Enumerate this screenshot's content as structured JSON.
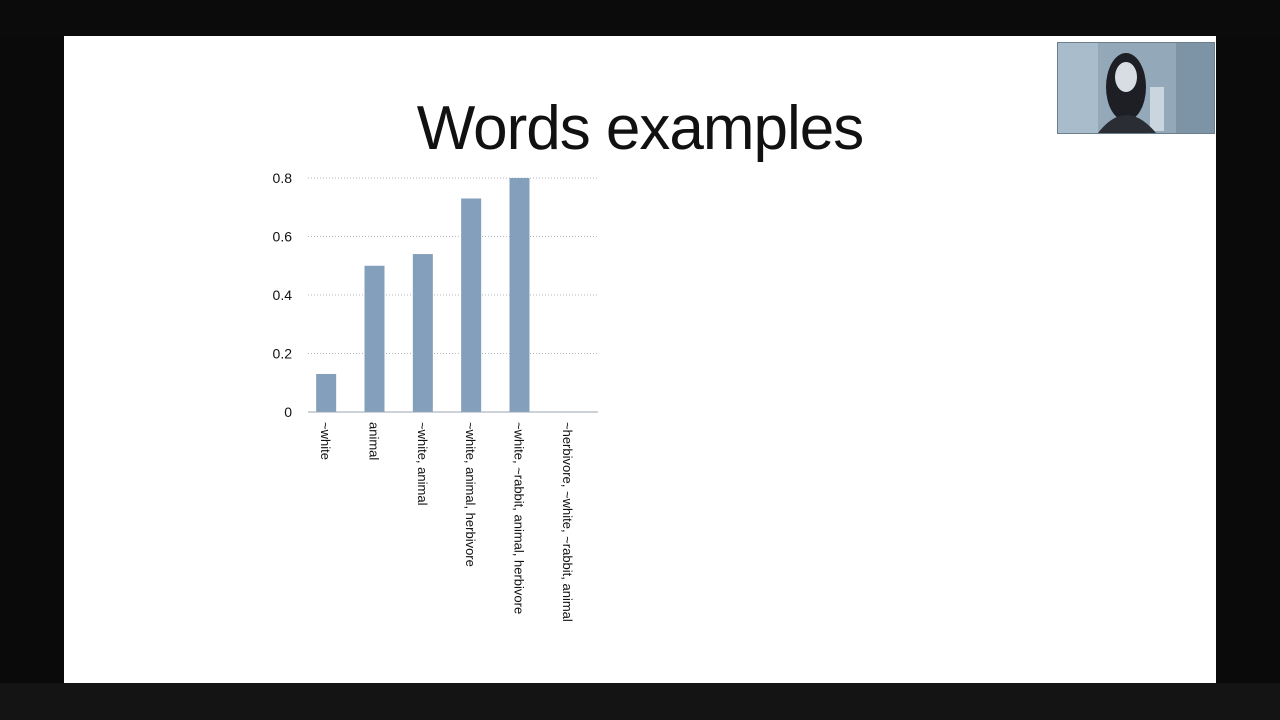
{
  "slide": {
    "title": "Words examples"
  },
  "colors": {
    "bar": "#849fbb",
    "axis": "#9aa5b1",
    "grid": "#b0b8c0",
    "text": "#111111"
  },
  "chart_data": {
    "type": "bar",
    "categories": [
      "~white",
      "animal",
      "~white, animal",
      "~white, animal, herbivore",
      "~white, ~rabbit, animal, herbivore",
      "~herbivore, ~white, ~rabbit, animal"
    ],
    "values": [
      0.13,
      0.5,
      0.54,
      0.73,
      0.8,
      0
    ],
    "yticks": [
      "0",
      "0.2",
      "0.4",
      "0.6",
      "0.8"
    ],
    "ylim": [
      0,
      0.8
    ],
    "grid": true,
    "xlabel": "",
    "ylabel": ""
  }
}
